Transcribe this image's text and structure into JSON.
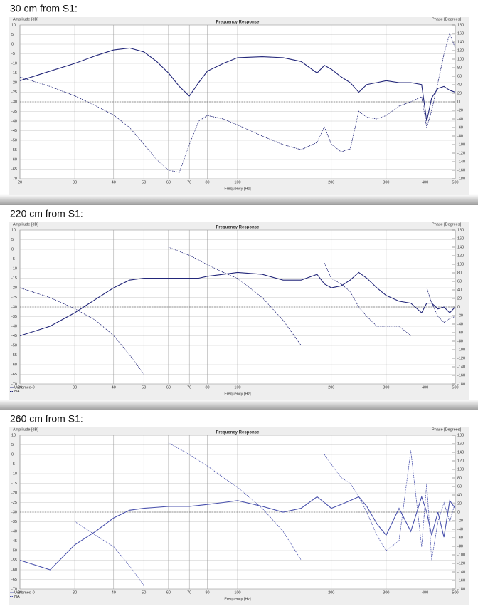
{
  "chart_data": [
    {
      "type": "line",
      "heading": "30 cm from S1:",
      "title": "Frequency Response",
      "ylabel": "Amplitude [dB]",
      "y2label": "Phase [Degrees]",
      "xlabel": "Frequency [Hz]",
      "xscale": "log",
      "grid": true,
      "x": [
        20,
        25,
        30,
        35,
        40,
        45,
        50,
        55,
        60,
        65,
        70,
        75,
        80,
        90,
        100,
        120,
        140,
        160,
        180,
        190,
        200,
        215,
        230,
        245,
        260,
        280,
        300,
        330,
        360,
        390,
        405,
        420,
        440,
        460,
        480,
        500
      ],
      "xlim": [
        20,
        500
      ],
      "xticks": [
        20,
        30,
        40,
        50,
        60,
        70,
        80,
        100,
        200,
        300,
        400,
        500
      ],
      "ylim": [
        -70,
        10
      ],
      "yticks": [
        10,
        5,
        0,
        -5,
        -10,
        -15,
        -20,
        -25,
        -30,
        -35,
        -40,
        -45,
        -50,
        -55,
        -60,
        -65,
        -70
      ],
      "y2lim": [
        -180,
        180
      ],
      "y2ticks": [
        180,
        160,
        140,
        120,
        100,
        80,
        60,
        40,
        20,
        0,
        -20,
        -40,
        -60,
        -80,
        -100,
        -120,
        -140,
        -160,
        -180
      ],
      "series": [
        {
          "color": "#23277a",
          "style": "solid",
          "values": [
            -19,
            -14,
            -10,
            -6,
            -3,
            -2,
            -4,
            -9,
            -15,
            -22,
            -27,
            -20,
            -14,
            -10,
            -7,
            -6.5,
            -7,
            -9,
            -15,
            -11,
            -13,
            -17,
            -20,
            -25,
            -21,
            -20,
            -19,
            -20,
            -20,
            -21,
            -40,
            -28,
            -23,
            -22,
            -24,
            -25
          ]
        },
        {
          "color": "#23277a",
          "style": "dashed",
          "axis": "y2",
          "values": [
            58,
            36,
            14,
            -9,
            -31,
            -60,
            -99,
            -135,
            -160,
            -165,
            -100,
            -45,
            -32,
            -40,
            -54,
            -80,
            -100,
            -112,
            -95,
            -58,
            -99,
            -117,
            -110,
            -22,
            -36,
            -40,
            -32,
            -10,
            0,
            12,
            -60,
            -20,
            45,
            112,
            160,
            126
          ]
        }
      ]
    },
    {
      "type": "line",
      "heading": "220 cm from S1:",
      "title": "Frequency Response",
      "ylabel": "Amplitude [dB]",
      "y2label": "Phase [Degrees]",
      "xlabel": "Frequency [Hz]",
      "xscale": "log",
      "grid": true,
      "x": [
        20,
        25,
        30,
        35,
        40,
        45,
        50,
        55,
        60,
        65,
        70,
        75,
        80,
        90,
        100,
        120,
        140,
        160,
        180,
        190,
        200,
        215,
        230,
        245,
        260,
        280,
        300,
        330,
        360,
        390,
        405,
        420,
        440,
        460,
        480,
        500
      ],
      "xlim": [
        20,
        500
      ],
      "xticks": [
        20,
        30,
        40,
        50,
        60,
        70,
        80,
        100,
        200,
        300,
        400,
        500
      ],
      "ylim": [
        -70,
        10
      ],
      "yticks": [
        10,
        5,
        0,
        -5,
        -10,
        -15,
        -20,
        -25,
        -30,
        -35,
        -40,
        -45,
        -50,
        -55,
        -60,
        -65,
        -70
      ],
      "y2lim": [
        -180,
        180
      ],
      "y2ticks": [
        180,
        160,
        140,
        120,
        100,
        80,
        60,
        40,
        20,
        0,
        -20,
        -40,
        -60,
        -80,
        -100,
        -120,
        -140,
        -160,
        -180
      ],
      "series": [
        {
          "name": "Unnamed-0",
          "color": "#23277a",
          "style": "solid",
          "values": [
            -45,
            -40,
            -33,
            -26,
            -20,
            -16,
            -15,
            -15,
            -15,
            -15,
            -15,
            -15,
            -14,
            -13,
            -12,
            -13,
            -16,
            -16,
            -13,
            -18,
            -20,
            -19,
            -16,
            -12,
            -15,
            -20,
            -24,
            -27,
            -28,
            -33,
            -28,
            -28,
            -31,
            -30,
            -33,
            -30
          ]
        },
        {
          "name": "NA",
          "color": "#23277a",
          "style": "dashed",
          "axis": "y2",
          "values": [
            45,
            22,
            -4,
            -31,
            -67,
            -112,
            -157,
            null,
            140,
            130,
            121,
            110,
            99,
            81,
            67,
            22,
            -31,
            -90,
            null,
            103,
            67,
            54,
            36,
            0,
            -22,
            -45,
            -45,
            -45,
            -67,
            null,
            45,
            9,
            -22,
            -36,
            -27,
            -22
          ]
        }
      ]
    },
    {
      "type": "line",
      "heading": "260 cm from S1:",
      "title": "Frequency Response",
      "ylabel": "Amplitude [dB]",
      "y2label": "Phase [Degrees]",
      "xlabel": "Frequency [Hz]",
      "xscale": "log",
      "grid": true,
      "x": [
        20,
        25,
        30,
        35,
        40,
        45,
        50,
        55,
        60,
        65,
        70,
        75,
        80,
        90,
        100,
        120,
        140,
        160,
        180,
        190,
        200,
        215,
        230,
        245,
        260,
        280,
        300,
        330,
        360,
        390,
        405,
        420,
        440,
        460,
        480,
        500
      ],
      "xlim": [
        20,
        500
      ],
      "xticks": [
        20,
        30,
        40,
        50,
        60,
        70,
        80,
        100,
        200,
        300,
        400,
        500
      ],
      "ylim": [
        -70,
        10
      ],
      "yticks": [
        10,
        5,
        0,
        -5,
        -10,
        -15,
        -20,
        -25,
        -30,
        -35,
        -40,
        -45,
        -50,
        -55,
        -60,
        -65,
        -70
      ],
      "y2lim": [
        -180,
        180
      ],
      "y2ticks": [
        180,
        160,
        140,
        120,
        100,
        80,
        60,
        40,
        20,
        0,
        -20,
        -40,
        -60,
        -80,
        -100,
        -120,
        -140,
        -160,
        -180
      ],
      "series": [
        {
          "name": "Unnamed-0",
          "color": "#4a52ad",
          "style": "solid",
          "values": [
            -55,
            -60,
            -47,
            -40,
            -33,
            -29,
            -28,
            -27.5,
            -27,
            -27,
            -27,
            -26.5,
            -26,
            -25,
            -24,
            -27,
            -30,
            -28,
            -22,
            -25,
            -28,
            -26,
            -24,
            -22,
            -27,
            -36,
            -42,
            -28,
            -40,
            -22,
            -30,
            -42,
            -30,
            -43,
            -24,
            -28
          ]
        },
        {
          "name": "NA",
          "color": "#4a52ad",
          "style": "dashed",
          "axis": "y2",
          "values": [
            null,
            null,
            -22,
            -54,
            -81,
            -126,
            -171,
            null,
            162,
            148,
            135,
            121,
            108,
            81,
            58,
            9,
            -45,
            -112,
            null,
            135,
            112,
            81,
            67,
            36,
            0,
            -54,
            -90,
            -67,
            144,
            -81,
            67,
            -112,
            -22,
            22,
            -22,
            22
          ]
        }
      ]
    }
  ]
}
